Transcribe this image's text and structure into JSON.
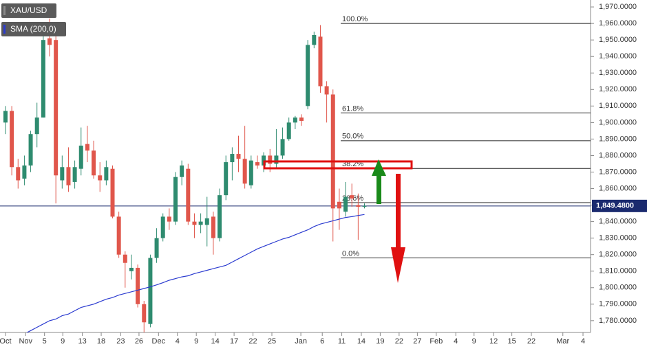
{
  "chart_data": {
    "type": "candlestick",
    "series": [
      {
        "name": "XAU/USD",
        "up_color": "#2e8b6f",
        "down_color": "#e0564b",
        "open": [
          1900,
          1907,
          1873,
          1866,
          1874,
          1893,
          1903,
          1951,
          1950,
          1865,
          1873,
          1864,
          1872,
          1887,
          1883,
          1868,
          1865,
          1872,
          1843,
          1820,
          1810,
          1812,
          1790,
          1778,
          1818,
          1830,
          1843,
          1840,
          1867,
          1872,
          1840,
          1838,
          1838,
          1843,
          1830,
          1856,
          1876,
          1881,
          1878,
          1862,
          1876,
          1874,
          1880,
          1875,
          1880,
          1890,
          1900,
          1903,
          1910,
          1947,
          1952,
          1922,
          1917,
          1852,
          1846,
          1856,
          1850,
          1849
        ],
        "high": [
          1910,
          1910,
          1878,
          1880,
          1895,
          1912,
          1956,
          1963,
          1955,
          1880,
          1885,
          1877,
          1897,
          1898,
          1889,
          1876,
          1877,
          1874,
          1846,
          1822,
          1820,
          1814,
          1792,
          1820,
          1836,
          1845,
          1848,
          1870,
          1877,
          1875,
          1845,
          1845,
          1855,
          1846,
          1860,
          1880,
          1885,
          1892,
          1898,
          1880,
          1880,
          1882,
          1884,
          1896,
          1897,
          1903,
          1904,
          1905,
          1950,
          1955,
          1959,
          1925,
          1920,
          1860,
          1864,
          1863,
          1857,
          1851
        ],
        "low": [
          1893,
          1868,
          1860,
          1862,
          1870,
          1885,
          1903,
          1940,
          1851,
          1860,
          1858,
          1860,
          1868,
          1876,
          1866,
          1858,
          1862,
          1842,
          1818,
          1800,
          1805,
          1788,
          1771,
          1776,
          1815,
          1828,
          1835,
          1838,
          1862,
          1838,
          1830,
          1833,
          1825,
          1820,
          1828,
          1853,
          1865,
          1870,
          1860,
          1860,
          1872,
          1870,
          1870,
          1872,
          1878,
          1889,
          1896,
          1898,
          1908,
          1945,
          1918,
          1900,
          1828,
          1835,
          1843,
          1849,
          1829,
          1848
        ],
        "close": [
          1907,
          1873,
          1865,
          1874,
          1893,
          1903,
          1950,
          1947,
          1868,
          1873,
          1862,
          1873,
          1886,
          1883,
          1868,
          1865,
          1873,
          1843,
          1820,
          1815,
          1812,
          1790,
          1779,
          1818,
          1830,
          1843,
          1840,
          1867,
          1874,
          1840,
          1838,
          1840,
          1842,
          1830,
          1856,
          1876,
          1881,
          1878,
          1863,
          1877,
          1874,
          1880,
          1875,
          1880,
          1890,
          1900,
          1903,
          1901,
          1947,
          1953,
          1922,
          1917,
          1848,
          1848,
          1855,
          1854,
          1849,
          1849.48
        ]
      },
      {
        "name": "SMA (200,0)",
        "type": "line",
        "color": "#2b3bd0",
        "values": [
          null,
          null,
          null,
          1772,
          1774,
          1776,
          1778,
          1780,
          1781,
          1783,
          1784,
          1786,
          1788,
          1789,
          1790,
          1791.5,
          1793,
          1794,
          1795.5,
          1796.5,
          1797.5,
          1798.5,
          1799.5,
          1800.5,
          1801.7,
          1803,
          1804.5,
          1805.5,
          1806.5,
          1807.2,
          1808.5,
          1809.5,
          1810.5,
          1811.5,
          1812.5,
          1813.5,
          1815.5,
          1817.5,
          1819.5,
          1821.5,
          1823.5,
          1825,
          1826.5,
          1828,
          1829.5,
          1830.5,
          1832,
          1833.5,
          1835,
          1837,
          1838.5,
          1839.5,
          1840.5,
          1841.5,
          1842.5,
          1843,
          1843.7,
          1844.3
        ]
      }
    ],
    "xlim": [
      -0.87,
      92.9
    ],
    "xticks": [
      {
        "value": 0,
        "label": "Oct"
      },
      {
        "value": 3.2,
        "label": "Nov"
      },
      {
        "value": 6.2,
        "label": "5"
      },
      {
        "value": 9.1,
        "label": "9"
      },
      {
        "value": 12.2,
        "label": "13"
      },
      {
        "value": 15.2,
        "label": "18"
      },
      {
        "value": 18.3,
        "label": "23"
      },
      {
        "value": 21.2,
        "label": "26"
      },
      {
        "value": 24.3,
        "label": "Dec"
      },
      {
        "value": 27.3,
        "label": "4"
      },
      {
        "value": 30.3,
        "label": "9"
      },
      {
        "value": 33.3,
        "label": "14"
      },
      {
        "value": 36.3,
        "label": "17"
      },
      {
        "value": 39.3,
        "label": "22"
      },
      {
        "value": 42.3,
        "label": "25"
      },
      {
        "value": 46.9,
        "label": "Jan"
      },
      {
        "value": 50.3,
        "label": "6"
      },
      {
        "value": 53.4,
        "label": "11"
      },
      {
        "value": 56.5,
        "label": "14"
      },
      {
        "value": 59.5,
        "label": "19"
      },
      {
        "value": 62.5,
        "label": "22"
      },
      {
        "value": 65.4,
        "label": "27"
      },
      {
        "value": 68.4,
        "label": "Feb"
      },
      {
        "value": 71.5,
        "label": "4"
      },
      {
        "value": 74.4,
        "label": "9"
      },
      {
        "value": 77.5,
        "label": "12"
      },
      {
        "value": 80.4,
        "label": "15"
      },
      {
        "value": 83.5,
        "label": "22"
      },
      {
        "value": 88.5,
        "label": "Mar"
      },
      {
        "value": 91.7,
        "label": "4"
      }
    ],
    "ylim": [
      1773.7,
      1974.2
    ],
    "yticks": [
      {
        "value": 1780,
        "label": "1,780.0000"
      },
      {
        "value": 1790,
        "label": "1,790.0000"
      },
      {
        "value": 1800,
        "label": "1,800.0000"
      },
      {
        "value": 1810,
        "label": "1,810.0000"
      },
      {
        "value": 1820,
        "label": "1,820.0000"
      },
      {
        "value": 1830,
        "label": "1,830.0000"
      },
      {
        "value": 1840,
        "label": "1,840.0000"
      },
      {
        "value": 1850,
        "label": "1,850.0000"
      },
      {
        "value": 1860,
        "label": "1,860.0000"
      },
      {
        "value": 1870,
        "label": "1,870.0000"
      },
      {
        "value": 1880,
        "label": "1,880.0000"
      },
      {
        "value": 1890,
        "label": "1,890.0000"
      },
      {
        "value": 1900,
        "label": "1,900.0000"
      },
      {
        "value": 1910,
        "label": "1,910.0000"
      },
      {
        "value": 1920,
        "label": "1,920.0000"
      },
      {
        "value": 1930,
        "label": "1,930.0000"
      },
      {
        "value": 1940,
        "label": "1,940.0000"
      },
      {
        "value": 1950,
        "label": "1,950.0000"
      },
      {
        "value": 1960,
        "label": "1,960.0000"
      },
      {
        "value": 1970,
        "label": "1,970.0000"
      }
    ],
    "fib_levels": [
      {
        "label": "100.0%",
        "value": 1960
      },
      {
        "label": "61.8%",
        "value": 1905.8
      },
      {
        "label": "50.0%",
        "value": 1889
      },
      {
        "label": "38.2%",
        "value": 1872.2
      },
      {
        "label": "23.6%",
        "value": 1851.5
      },
      {
        "label": "0.0%",
        "value": 1818
      }
    ],
    "last_price": {
      "value": 1849.48,
      "label": "1,849.4800"
    }
  }
}
